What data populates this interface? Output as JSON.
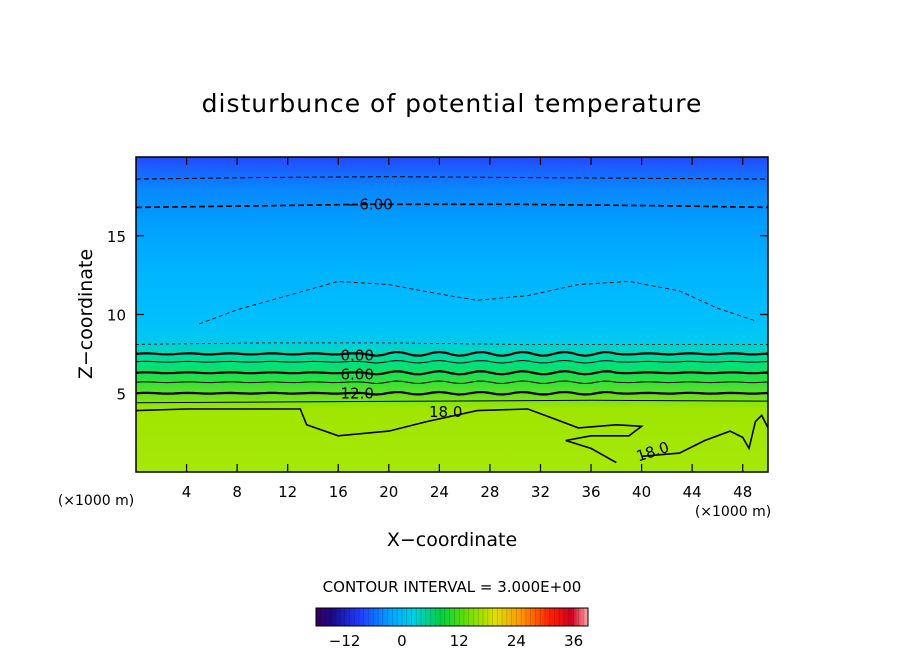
{
  "chart_data": {
    "type": "heatmap",
    "title": "disturbunce of potential temperature",
    "xlabel": "X−coordinate",
    "ylabel": "Z−coordinate",
    "x_unit": "(×1000 m)",
    "y_unit": "(×1000 m)",
    "xlim": [
      0,
      50
    ],
    "ylim": [
      0,
      20
    ],
    "x_ticks": [
      4,
      8,
      12,
      16,
      20,
      24,
      28,
      32,
      36,
      40,
      44,
      48
    ],
    "x_tick_labels": [
      "4",
      "8",
      "12",
      "16",
      "20",
      "24",
      "28",
      "32",
      "36",
      "40",
      "44",
      "48"
    ],
    "y_ticks": [
      5,
      10,
      15
    ],
    "y_tick_labels": [
      "5",
      "10",
      "15"
    ],
    "contour_interval_text": "CONTOUR INTERVAL = 3.000E+00",
    "contour_labels": [
      {
        "text": "−6.00",
        "x": 18.5,
        "z": 17.0
      },
      {
        "text": "0.00",
        "x": 17.5,
        "z": 7.4
      },
      {
        "text": "6.00",
        "x": 17.5,
        "z": 6.2
      },
      {
        "text": "12.0",
        "x": 17.5,
        "z": 5.0
      },
      {
        "text": "18.0",
        "x": 24.5,
        "z": 3.8
      },
      {
        "text": "18.0",
        "x": 41.0,
        "z": 1.3
      }
    ],
    "colorbar": {
      "range": [
        -18,
        39
      ],
      "tick_values": [
        -12,
        0,
        12,
        24,
        36
      ],
      "tick_labels": [
        "−12",
        "0",
        "12",
        "24",
        "36"
      ]
    },
    "colors": {
      "top": "#1f4cff",
      "upper_band": "#0a8cff",
      "mid": "#00b8ff",
      "low_level": "#9be600",
      "contour": "#000000"
    }
  }
}
